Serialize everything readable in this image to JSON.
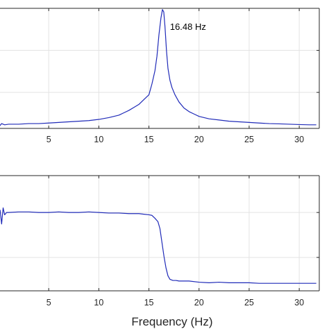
{
  "chart_data": [
    {
      "type": "line",
      "xlim": [
        0,
        32
      ],
      "ylim": [
        0,
        1
      ],
      "xticks": [
        5,
        10,
        15,
        20,
        25,
        30
      ],
      "tick_labels": [
        "5",
        "10",
        "15",
        "20",
        "25",
        "30"
      ],
      "yticks": [
        0.3,
        0.65
      ],
      "grid": true,
      "annotation": {
        "text": "16.48 Hz",
        "x": 18.9,
        "y": 0.82
      },
      "series": [
        {
          "color": "#1f2ab8",
          "x": [
            0,
            0.3,
            0.6,
            1,
            2,
            3,
            4,
            5,
            6,
            7,
            8,
            9,
            10,
            11,
            12,
            12.5,
            13,
            13.5,
            14,
            14.5,
            15,
            15.3,
            15.6,
            15.8,
            16,
            16.2,
            16.35,
            16.48,
            16.6,
            16.75,
            16.9,
            17.1,
            17.3,
            17.6,
            18,
            18.5,
            19,
            19.5,
            20,
            21,
            22,
            23,
            24,
            25,
            26,
            27,
            28,
            29,
            30,
            31,
            31.7
          ],
          "y": [
            0.01,
            0.04,
            0.03,
            0.035,
            0.035,
            0.04,
            0.04,
            0.045,
            0.05,
            0.055,
            0.06,
            0.065,
            0.075,
            0.09,
            0.11,
            0.13,
            0.15,
            0.175,
            0.2,
            0.24,
            0.28,
            0.37,
            0.48,
            0.6,
            0.78,
            0.92,
            0.99,
            0.97,
            0.85,
            0.65,
            0.5,
            0.4,
            0.34,
            0.28,
            0.22,
            0.17,
            0.14,
            0.12,
            0.1,
            0.08,
            0.07,
            0.06,
            0.055,
            0.05,
            0.045,
            0.04,
            0.038,
            0.035,
            0.032,
            0.03,
            0.03
          ]
        }
      ]
    },
    {
      "type": "line",
      "xlim": [
        0,
        32
      ],
      "ylim": [
        0,
        1
      ],
      "xticks": [
        5,
        10,
        15,
        20,
        25,
        30
      ],
      "tick_labels": [
        "5",
        "10",
        "15",
        "20",
        "25",
        "30"
      ],
      "yticks": [
        0.29,
        0.68
      ],
      "grid": true,
      "xlabel": "Frequency (Hz)",
      "series": [
        {
          "color": "#1f2ab8",
          "x": [
            0,
            0.15,
            0.3,
            0.45,
            0.6,
            0.8,
            1,
            2,
            3,
            4,
            5,
            6,
            7,
            8,
            9,
            10,
            11,
            12,
            13,
            14,
            14.5,
            15,
            15.3,
            15.6,
            15.9,
            16.1,
            16.3,
            16.5,
            16.7,
            16.9,
            17.1,
            17.4,
            17.7,
            18,
            19,
            20,
            21,
            22,
            23,
            24,
            25,
            26,
            27,
            28,
            29,
            30,
            31,
            31.7
          ],
          "y": [
            0.62,
            0.7,
            0.58,
            0.72,
            0.66,
            0.68,
            0.68,
            0.685,
            0.685,
            0.68,
            0.68,
            0.685,
            0.68,
            0.68,
            0.685,
            0.68,
            0.675,
            0.675,
            0.67,
            0.67,
            0.665,
            0.66,
            0.655,
            0.63,
            0.6,
            0.54,
            0.42,
            0.3,
            0.2,
            0.13,
            0.1,
            0.09,
            0.09,
            0.085,
            0.085,
            0.075,
            0.07,
            0.075,
            0.07,
            0.07,
            0.07,
            0.065,
            0.065,
            0.065,
            0.065,
            0.065,
            0.065,
            0.065
          ]
        }
      ]
    }
  ]
}
